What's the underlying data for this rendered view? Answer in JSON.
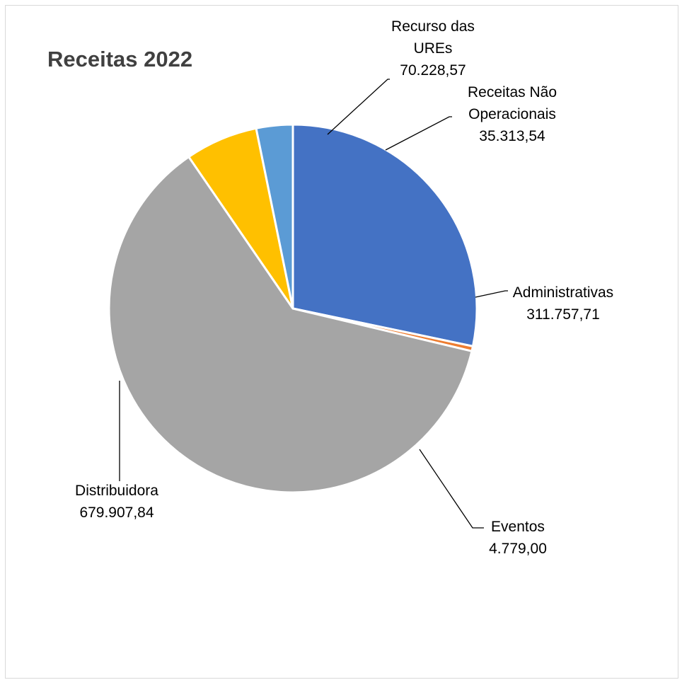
{
  "chart_data": {
    "type": "pie",
    "title": "Receitas 2022",
    "start_angle_deg": 0,
    "direction": "clockwise",
    "slices": [
      {
        "name": "Administrativas",
        "label_lines": [
          "Administrativas"
        ],
        "value_label": "311.757,71",
        "value": 311757.71,
        "color": "#4472C4"
      },
      {
        "name": "Eventos",
        "label_lines": [
          "Eventos"
        ],
        "value_label": "4.779,00",
        "value": 4779.0,
        "color": "#ED7D31"
      },
      {
        "name": "Distribuidora",
        "label_lines": [
          "Distribuidora"
        ],
        "value_label": "679.907,84",
        "value": 679907.84,
        "color": "#A5A5A5"
      },
      {
        "name": "Recurso das UREs",
        "label_lines": [
          "Recurso das",
          "UREs"
        ],
        "value_label": "70.228,57",
        "value": 70228.57,
        "color": "#FFC000"
      },
      {
        "name": "Receitas Não Operacionais",
        "label_lines": [
          "Receitas Não",
          "Operacionais"
        ],
        "value_label": "35.313,54",
        "value": 35313.54,
        "color": "#5B9BD5"
      }
    ],
    "legend": "none",
    "data_labels": "outside-with-leader-lines"
  }
}
